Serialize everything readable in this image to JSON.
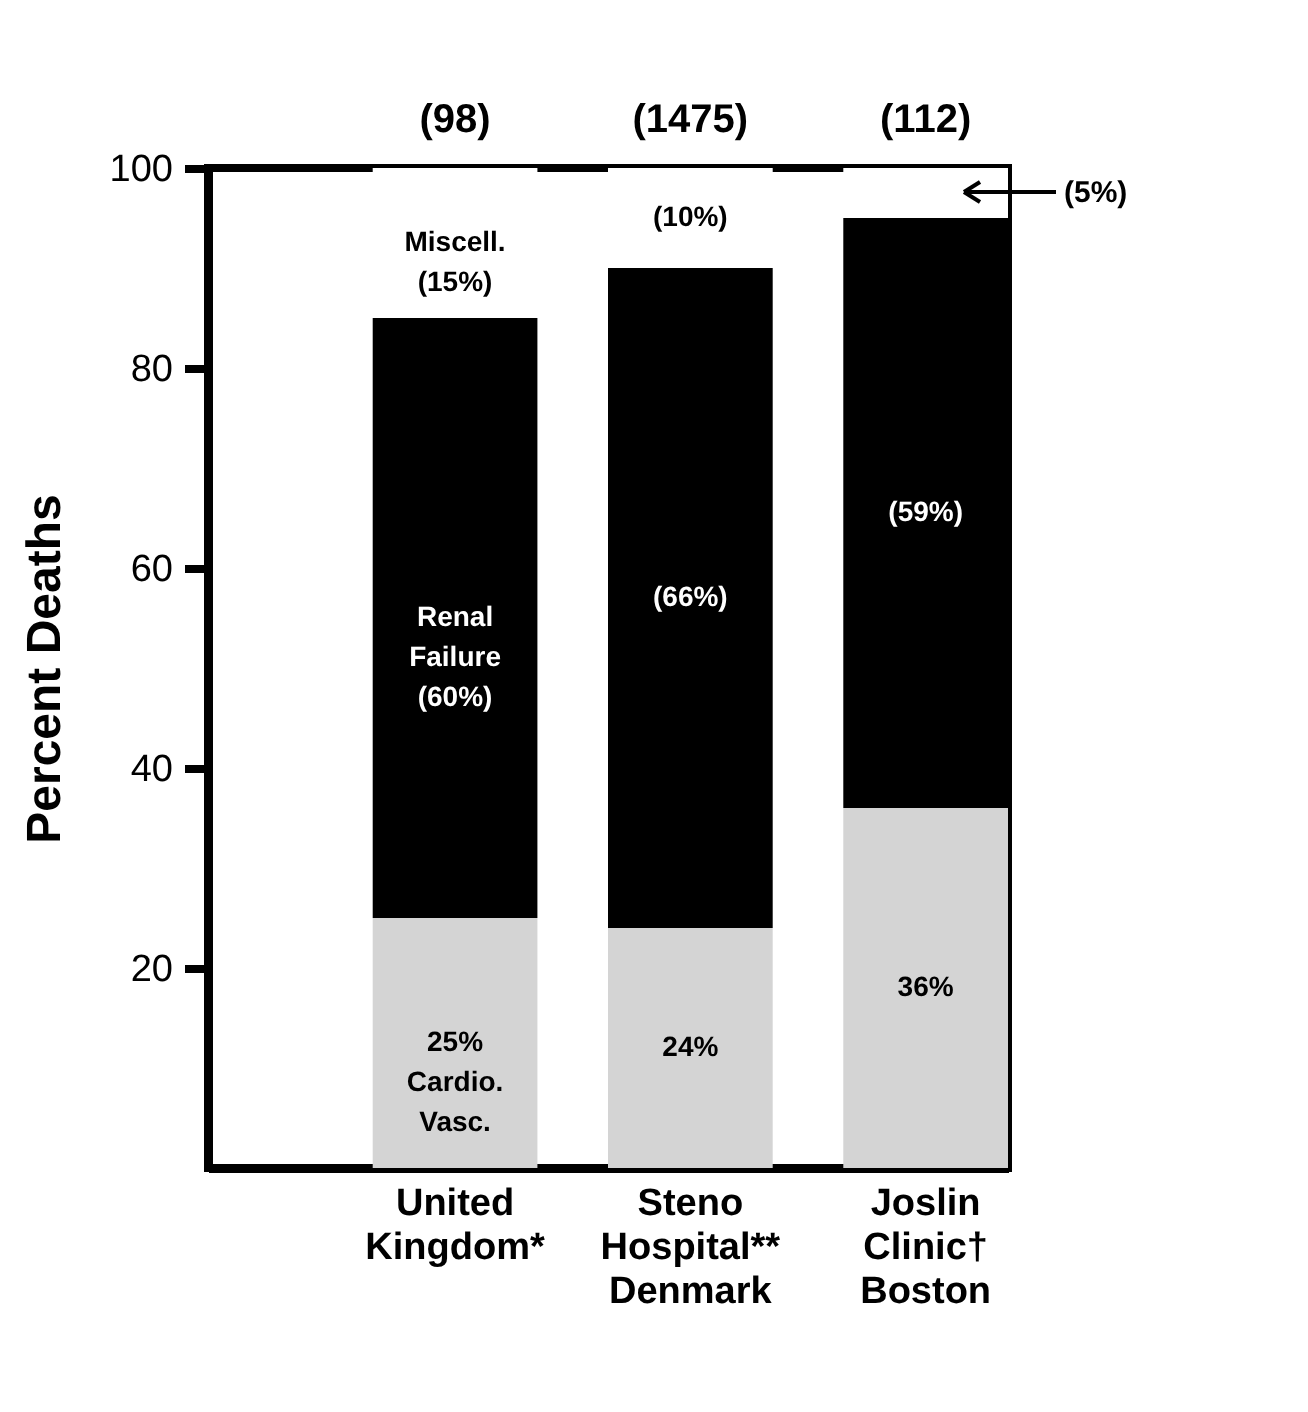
{
  "chart_data": {
    "type": "bar",
    "stacked": true,
    "ylabel": "Percent Deaths",
    "categories": [
      "United\nKingdom*",
      "Steno\nHospital**\nDenmark",
      "Joslin\nClinic†\nBoston"
    ],
    "series": [
      {
        "color": "#d4d4d4",
        "values": [
          25,
          24,
          36
        ],
        "value_labels": [
          "25%\nCardio.\nVasc.",
          "24%",
          "36%"
        ]
      },
      {
        "color": "#000000",
        "values": [
          60,
          66,
          59
        ],
        "value_labels": [
          "Renal\nFailure\n(60%)",
          "(66%)",
          "(59%)"
        ]
      },
      {
        "color": "#ffffff",
        "values": [
          15,
          10,
          5
        ],
        "value_labels": [
          "Miscell.\n(15%)",
          "(10%)",
          null
        ]
      }
    ],
    "annotations": [
      {
        "text": "(98)",
        "x": "United\nKingdom*",
        "y": 100
      },
      {
        "text": "(1475)",
        "x": "Steno\nHospital**\nDenmark",
        "y": 100
      },
      {
        "text": "(112)",
        "x": "Joslin\nClinic†\nBoston",
        "y": 100
      },
      "(5%)"
    ],
    "ylim": [
      0,
      100
    ],
    "yticks": [
      20,
      40,
      60,
      80,
      100
    ],
    "grid": false
  }
}
